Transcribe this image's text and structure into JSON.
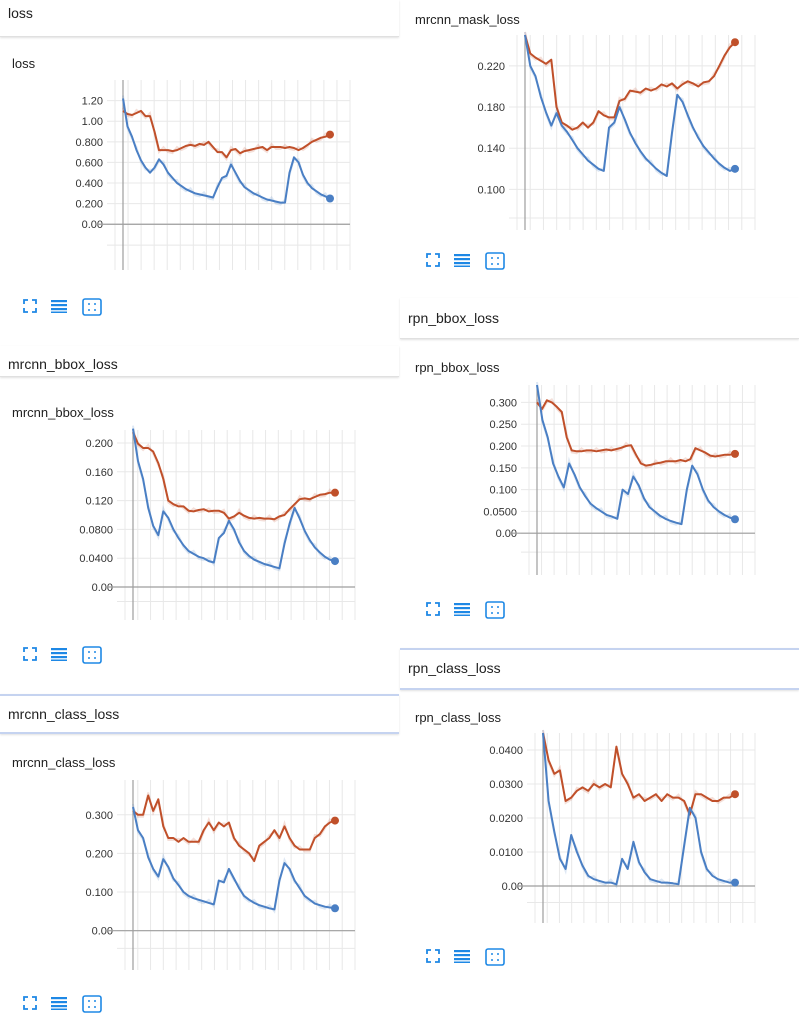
{
  "colors": {
    "smoothed": "#c0502a",
    "raw": "#4a7fc4",
    "grid": "#e8e8e8",
    "axis": "#9e9e9e",
    "icon": "#1e88e5"
  },
  "icons": [
    "fit-domain-icon",
    "toggle-log-icon",
    "expand-icon"
  ],
  "sections": {
    "loss": "loss",
    "mrcnn_bbox_loss": "mrcnn_bbox_loss",
    "mrcnn_class_loss": "mrcnn_class_loss",
    "rpn_bbox_loss": "rpn_bbox_loss",
    "rpn_class_loss": "rpn_class_loss"
  },
  "chart_data": [
    {
      "id": "loss",
      "type": "line",
      "title": "loss",
      "ylim": [
        -0.25,
        1.4
      ],
      "yticks": [
        "1.20",
        "1.00",
        "0.800",
        "0.600",
        "0.400",
        "0.200",
        "0.00"
      ],
      "ytick_values": [
        1.2,
        1.0,
        0.8,
        0.6,
        0.4,
        0.2,
        0.0
      ],
      "series": [
        {
          "values": [
            1.1,
            1.07,
            1.06,
            1.08,
            1.1,
            1.05,
            1.05,
            0.9,
            0.72,
            0.72,
            0.72,
            0.71,
            0.72,
            0.74,
            0.76,
            0.77,
            0.76,
            0.78,
            0.77,
            0.8,
            0.75,
            0.7,
            0.7,
            0.65,
            0.72,
            0.73,
            0.69,
            0.71,
            0.72,
            0.73,
            0.74,
            0.75,
            0.72,
            0.75,
            0.75,
            0.75,
            0.74,
            0.75,
            0.74,
            0.72,
            0.74,
            0.77,
            0.8,
            0.82,
            0.84,
            0.85,
            0.87
          ]
        },
        {
          "values": [
            1.22,
            0.95,
            0.85,
            0.72,
            0.62,
            0.55,
            0.5,
            0.55,
            0.63,
            0.58,
            0.5,
            0.45,
            0.4,
            0.37,
            0.34,
            0.32,
            0.3,
            0.29,
            0.28,
            0.27,
            0.26,
            0.36,
            0.45,
            0.47,
            0.58,
            0.5,
            0.42,
            0.36,
            0.33,
            0.3,
            0.28,
            0.26,
            0.24,
            0.23,
            0.22,
            0.21,
            0.21,
            0.5,
            0.65,
            0.6,
            0.48,
            0.4,
            0.35,
            0.32,
            0.29,
            0.27,
            0.25
          ]
        }
      ]
    },
    {
      "id": "mrcnn_bbox_loss",
      "type": "line",
      "title": "mrcnn_bbox_loss",
      "ylim": [
        -0.018,
        0.218
      ],
      "yticks": [
        "0.200",
        "0.160",
        "0.120",
        "0.0800",
        "0.0400",
        "0.00"
      ],
      "ytick_values": [
        0.2,
        0.16,
        0.12,
        0.08,
        0.04,
        0.0
      ],
      "series": [
        {
          "values": [
            0.215,
            0.199,
            0.193,
            0.193,
            0.188,
            0.172,
            0.15,
            0.12,
            0.115,
            0.112,
            0.112,
            0.106,
            0.105,
            0.107,
            0.108,
            0.105,
            0.106,
            0.106,
            0.103,
            0.095,
            0.098,
            0.103,
            0.099,
            0.096,
            0.095,
            0.096,
            0.095,
            0.095,
            0.094,
            0.098,
            0.1,
            0.108,
            0.115,
            0.122,
            0.123,
            0.122,
            0.125,
            0.128,
            0.129,
            0.131,
            0.131
          ]
        },
        {
          "values": [
            0.22,
            0.175,
            0.15,
            0.11,
            0.085,
            0.072,
            0.105,
            0.096,
            0.08,
            0.068,
            0.058,
            0.05,
            0.046,
            0.042,
            0.04,
            0.036,
            0.034,
            0.068,
            0.075,
            0.092,
            0.08,
            0.062,
            0.05,
            0.043,
            0.038,
            0.035,
            0.032,
            0.03,
            0.028,
            0.026,
            0.06,
            0.088,
            0.11,
            0.095,
            0.078,
            0.065,
            0.055,
            0.048,
            0.042,
            0.038,
            0.036
          ]
        }
      ]
    },
    {
      "id": "mrcnn_class_loss",
      "type": "line",
      "title": "mrcnn_class_loss",
      "ylim": [
        -0.05,
        0.39
      ],
      "yticks": [
        "0.300",
        "0.200",
        "0.100",
        "0.00"
      ],
      "ytick_values": [
        0.3,
        0.2,
        0.1,
        0.0
      ],
      "series": [
        {
          "values": [
            0.31,
            0.3,
            0.3,
            0.35,
            0.31,
            0.34,
            0.27,
            0.24,
            0.24,
            0.23,
            0.24,
            0.23,
            0.23,
            0.23,
            0.26,
            0.28,
            0.26,
            0.28,
            0.27,
            0.28,
            0.24,
            0.22,
            0.21,
            0.2,
            0.18,
            0.22,
            0.23,
            0.24,
            0.26,
            0.24,
            0.27,
            0.24,
            0.22,
            0.21,
            0.21,
            0.21,
            0.24,
            0.25,
            0.27,
            0.28,
            0.285
          ]
        },
        {
          "values": [
            0.32,
            0.26,
            0.24,
            0.19,
            0.16,
            0.14,
            0.185,
            0.165,
            0.135,
            0.118,
            0.1,
            0.09,
            0.084,
            0.08,
            0.076,
            0.072,
            0.068,
            0.13,
            0.125,
            0.16,
            0.135,
            0.11,
            0.09,
            0.08,
            0.072,
            0.066,
            0.062,
            0.058,
            0.055,
            0.13,
            0.175,
            0.16,
            0.13,
            0.11,
            0.09,
            0.08,
            0.07,
            0.066,
            0.062,
            0.06,
            0.058
          ]
        }
      ]
    },
    {
      "id": "mrcnn_mask_loss",
      "type": "line",
      "title": "mrcnn_mask_loss",
      "ylim": [
        0.08,
        0.25
      ],
      "yticks": [
        "0.220",
        "0.180",
        "0.140",
        "0.100"
      ],
      "ytick_values": [
        0.22,
        0.18,
        0.14,
        0.1
      ],
      "series": [
        {
          "values": [
            0.25,
            0.232,
            0.228,
            0.225,
            0.222,
            0.226,
            0.18,
            0.165,
            0.162,
            0.158,
            0.16,
            0.165,
            0.16,
            0.165,
            0.176,
            0.172,
            0.17,
            0.17,
            0.186,
            0.188,
            0.196,
            0.195,
            0.194,
            0.198,
            0.196,
            0.198,
            0.202,
            0.2,
            0.203,
            0.198,
            0.202,
            0.205,
            0.203,
            0.2,
            0.204,
            0.205,
            0.21,
            0.22,
            0.23,
            0.238,
            0.243
          ]
        },
        {
          "values": [
            0.25,
            0.22,
            0.21,
            0.19,
            0.175,
            0.162,
            0.174,
            0.162,
            0.156,
            0.148,
            0.14,
            0.134,
            0.128,
            0.124,
            0.12,
            0.118,
            0.16,
            0.165,
            0.18,
            0.168,
            0.155,
            0.145,
            0.137,
            0.13,
            0.125,
            0.12,
            0.116,
            0.113,
            0.155,
            0.192,
            0.185,
            0.172,
            0.16,
            0.15,
            0.142,
            0.136,
            0.13,
            0.125,
            0.121,
            0.118,
            0.12
          ]
        }
      ]
    },
    {
      "id": "rpn_bbox_loss",
      "type": "line",
      "title": "rpn_bbox_loss",
      "ylim": [
        -0.05,
        0.34
      ],
      "yticks": [
        "0.300",
        "0.250",
        "0.200",
        "0.150",
        "0.100",
        "0.0500",
        "0.00"
      ],
      "ytick_values": [
        0.3,
        0.25,
        0.2,
        0.15,
        0.1,
        0.05,
        0.0
      ],
      "series": [
        {
          "values": [
            0.3,
            0.285,
            0.305,
            0.3,
            0.29,
            0.278,
            0.22,
            0.19,
            0.188,
            0.188,
            0.19,
            0.19,
            0.188,
            0.19,
            0.192,
            0.19,
            0.193,
            0.196,
            0.2,
            0.202,
            0.18,
            0.16,
            0.155,
            0.157,
            0.16,
            0.162,
            0.165,
            0.165,
            0.165,
            0.168,
            0.165,
            0.17,
            0.195,
            0.19,
            0.185,
            0.178,
            0.176,
            0.178,
            0.18,
            0.18,
            0.182
          ]
        },
        {
          "values": [
            0.34,
            0.26,
            0.22,
            0.16,
            0.13,
            0.105,
            0.16,
            0.135,
            0.105,
            0.085,
            0.068,
            0.058,
            0.05,
            0.042,
            0.038,
            0.033,
            0.1,
            0.09,
            0.13,
            0.11,
            0.08,
            0.06,
            0.05,
            0.04,
            0.033,
            0.028,
            0.024,
            0.021,
            0.1,
            0.155,
            0.135,
            0.1,
            0.075,
            0.06,
            0.05,
            0.042,
            0.036,
            0.032
          ],
          "note": ""
        }
      ]
    },
    {
      "id": "rpn_class_loss",
      "type": "line",
      "title": "rpn_class_loss",
      "ylim": [
        -0.005,
        0.045
      ],
      "yticks": [
        "0.0400",
        "0.0300",
        "0.0200",
        "0.0100",
        "0.00"
      ],
      "ytick_values": [
        0.04,
        0.03,
        0.02,
        0.01,
        0.0
      ],
      "series": [
        {
          "values": [
            0.045,
            0.037,
            0.033,
            0.034,
            0.025,
            0.026,
            0.028,
            0.029,
            0.028,
            0.03,
            0.029,
            0.03,
            0.029,
            0.041,
            0.033,
            0.03,
            0.026,
            0.027,
            0.025,
            0.026,
            0.027,
            0.025,
            0.027,
            0.026,
            0.026,
            0.025,
            0.021,
            0.027,
            0.027,
            0.026,
            0.025,
            0.025,
            0.026,
            0.026,
            0.027
          ]
        },
        {
          "values": [
            0.045,
            0.025,
            0.016,
            0.008,
            0.005,
            0.015,
            0.01,
            0.006,
            0.003,
            0.002,
            0.0015,
            0.001,
            0.001,
            0.0005,
            0.008,
            0.005,
            0.013,
            0.007,
            0.004,
            0.002,
            0.0015,
            0.001,
            0.001,
            0.0008,
            0.0005,
            0.012,
            0.023,
            0.02,
            0.01,
            0.005,
            0.003,
            0.002,
            0.0015,
            0.001,
            0.001
          ]
        }
      ]
    }
  ]
}
